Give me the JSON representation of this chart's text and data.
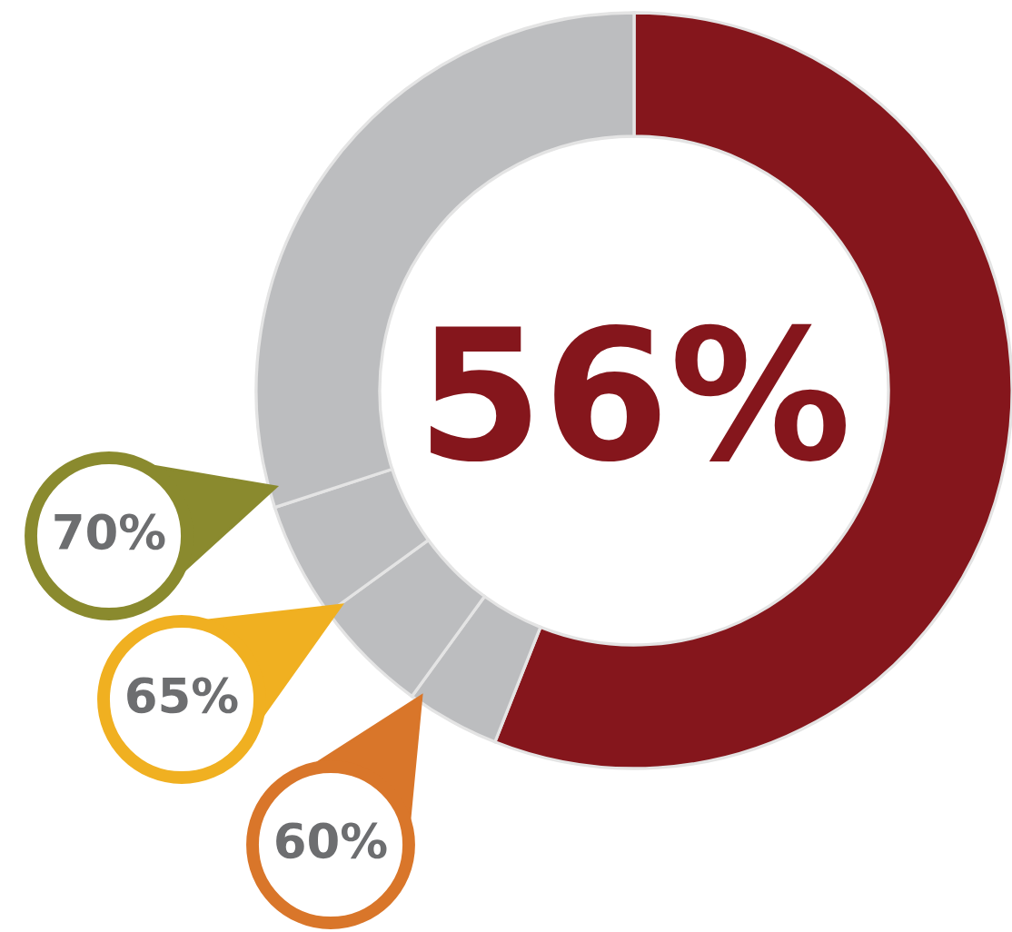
{
  "chart_data": {
    "type": "donut",
    "categories": [
      null,
      null,
      null,
      null,
      null
    ],
    "values": [
      56,
      4,
      5,
      5,
      30
    ],
    "colors": [
      "#85161c",
      "#bcbdbf",
      "#bcbdbf",
      "#bcbdbf",
      "#bcbdbf"
    ],
    "annotations": [
      "56%",
      "70%",
      "65%",
      "60%"
    ]
  }
}
